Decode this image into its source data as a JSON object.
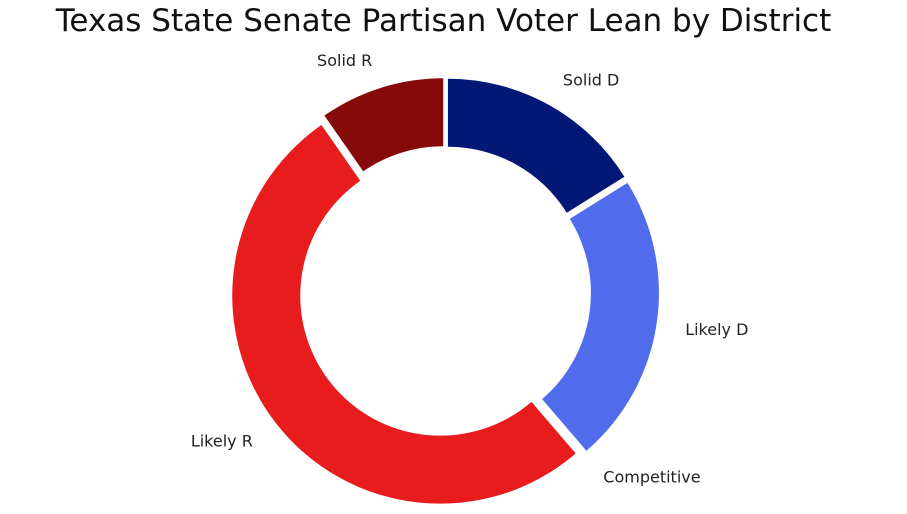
{
  "chart_data": {
    "type": "pie",
    "style": "donut",
    "title": "Texas State Senate Partisan Voter Lean by District",
    "categories": [
      "Solid D",
      "Likely D",
      "Competitive",
      "Likely R",
      "Solid R"
    ],
    "values": [
      5,
      7,
      0,
      16,
      3
    ],
    "colors": [
      "#021776",
      "#506BEB",
      "#4A6BE6",
      "#E81C1C",
      "#870A0A"
    ],
    "start_angle_deg": 90,
    "direction": "clockwise",
    "slice_separation": true,
    "legend": "none"
  }
}
